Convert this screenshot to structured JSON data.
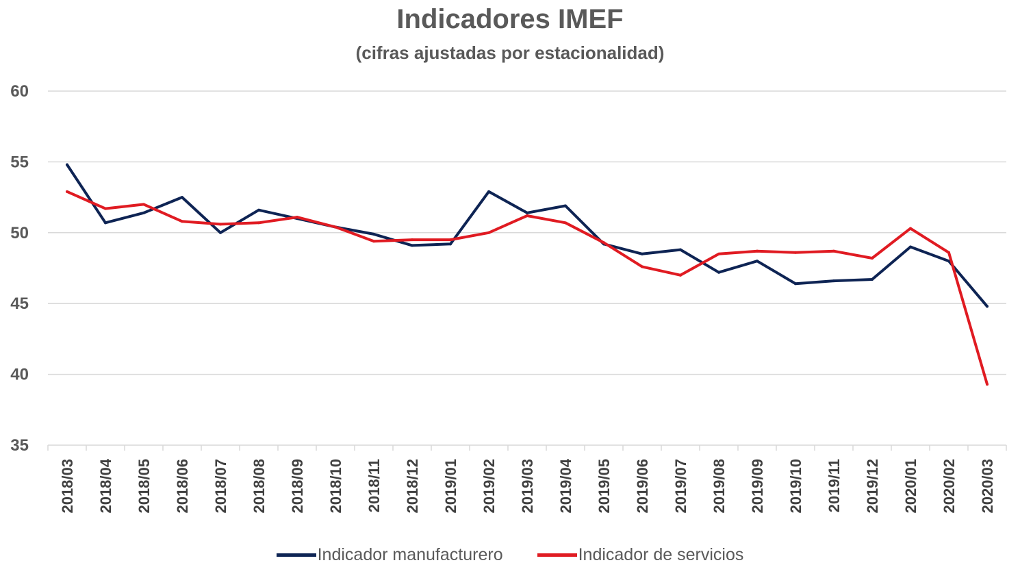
{
  "chart_data": {
    "type": "line",
    "title": "Indicadores IMEF",
    "subtitle": "(cifras ajustadas por estacionalidad)",
    "xlabel": "",
    "ylabel": "",
    "ylim": [
      35,
      60
    ],
    "yticks": [
      35,
      40,
      45,
      50,
      55,
      60
    ],
    "grid": true,
    "legend_position": "bottom",
    "categories": [
      "2018/03",
      "2018/04",
      "2018/05",
      "2018/06",
      "2018/07",
      "2018/08",
      "2018/09",
      "2018/10",
      "2018/11",
      "2018/12",
      "2019/01",
      "2019/02",
      "2019/03",
      "2019/04",
      "2019/05",
      "2019/06",
      "2019/07",
      "2019/08",
      "2019/09",
      "2019/10",
      "2019/11",
      "2019/12",
      "2020/01",
      "2020/02",
      "2020/03"
    ],
    "series": [
      {
        "name": "Indicador manufacturero",
        "color": "#0e2454",
        "values": [
          54.8,
          50.7,
          51.4,
          52.5,
          50.0,
          51.6,
          51.0,
          50.4,
          49.9,
          49.1,
          49.2,
          52.9,
          51.4,
          51.9,
          49.2,
          48.5,
          48.8,
          47.2,
          48.0,
          46.4,
          46.6,
          46.7,
          49.0,
          48.0,
          44.8
        ]
      },
      {
        "name": "Indicador de servicios",
        "color": "#e01b22",
        "values": [
          52.9,
          51.7,
          52.0,
          50.8,
          50.6,
          50.7,
          51.1,
          50.4,
          49.4,
          49.5,
          49.5,
          50.0,
          51.2,
          50.7,
          49.3,
          47.6,
          47.0,
          48.5,
          48.7,
          48.6,
          48.7,
          48.2,
          50.3,
          48.6,
          39.3
        ]
      }
    ]
  }
}
